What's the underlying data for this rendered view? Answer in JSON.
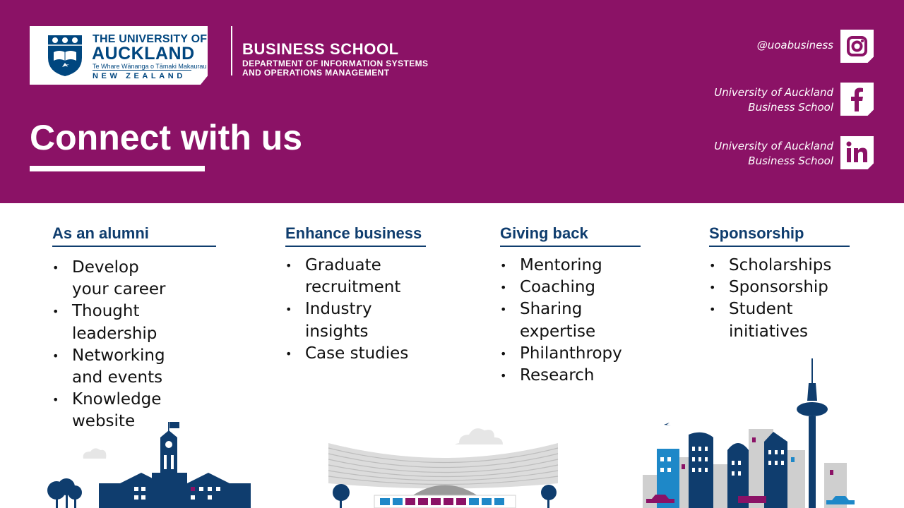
{
  "header": {
    "university": {
      "line1": "THE UNIVERSITY OF",
      "line2": "AUCKLAND",
      "maori": "Te Whare Wānanga o Tāmaki Makaurau",
      "country": "NEW ZEALAND"
    },
    "school": "BUSINESS SCHOOL",
    "department_line1": "DEPARTMENT OF INFORMATION SYSTEMS",
    "department_line2": "AND OPERATIONS MANAGEMENT",
    "title": "Connect with us"
  },
  "social": [
    {
      "label_line1": "@uoabusiness",
      "label_line2": "",
      "icon": "instagram-icon"
    },
    {
      "label_line1": "University of Auckland",
      "label_line2": "Business School",
      "icon": "facebook-icon"
    },
    {
      "label_line1": "University of Auckland",
      "label_line2": "Business School",
      "icon": "linkedin-icon"
    }
  ],
  "columns": [
    {
      "heading": "As an alumni",
      "items": [
        "Develop your career",
        "Thought leadership",
        "Networking and events",
        "Knowledge website"
      ]
    },
    {
      "heading": "Enhance business",
      "items": [
        "Graduate recruitment",
        "Industry insights",
        "Case studies"
      ]
    },
    {
      "heading": "Giving back",
      "items": [
        "Mentoring",
        "Coaching",
        "Sharing expertise",
        "Philanthropy",
        "Research"
      ]
    },
    {
      "heading": "Sponsorship",
      "items": [
        "Scholarships",
        "Sponsorship",
        "Student initiatives"
      ]
    }
  ],
  "colors": {
    "brand_purple": "#8b1266",
    "brand_navy": "#0f3d6e",
    "light_blue": "#1e88c8",
    "grey": "#cfcfcf"
  }
}
